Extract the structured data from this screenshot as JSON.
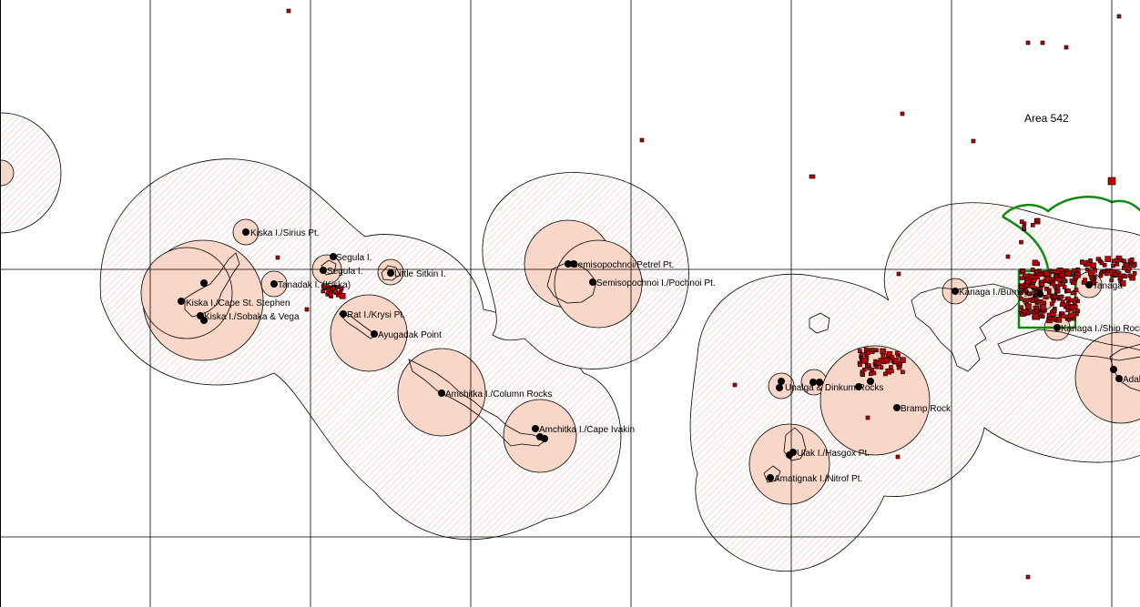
{
  "map": {
    "area_label": "Area 542",
    "colors": {
      "inner_buffer": "#f9d7c8",
      "outer_hatch": "#e8c2b3",
      "observation": "#c00000",
      "highlight_outline": "#118811",
      "site_marker": "#000000"
    },
    "sites": [
      {
        "name": "Kiska I./Sirius Pt."
      },
      {
        "name": "Segula I."
      },
      {
        "name": "Segula I."
      },
      {
        "name": "Tanadak I. (Kiska)"
      },
      {
        "name": "Little Sitkin I."
      },
      {
        "name": "Kiska I./Cape St. Stephen"
      },
      {
        "name": "Kiska I./Sobaka & Vega"
      },
      {
        "name": "Rat I./Krysi Pt."
      },
      {
        "name": "Ayugadak Point"
      },
      {
        "name": "Amchitka I./Column Rocks"
      },
      {
        "name": "Amchitka I./Cape Ivakin"
      },
      {
        "name": "Semisopochnoi/Petrel Pt."
      },
      {
        "name": "Semisopochnoi I./Pochnoi Pt."
      },
      {
        "name": "Unalga & Dinkum Rocks"
      },
      {
        "name": "Bramp Rock"
      },
      {
        "name": "Ulak I./Hasgox Pt."
      },
      {
        "name": "Amatignak I./Nitrof Pt."
      },
      {
        "name": "Kanaga I./Bumpy Pt."
      },
      {
        "name": "Kanaga I./Ship Rock"
      },
      {
        "name": "Adak"
      },
      {
        "name": "Tanaga"
      }
    ]
  }
}
